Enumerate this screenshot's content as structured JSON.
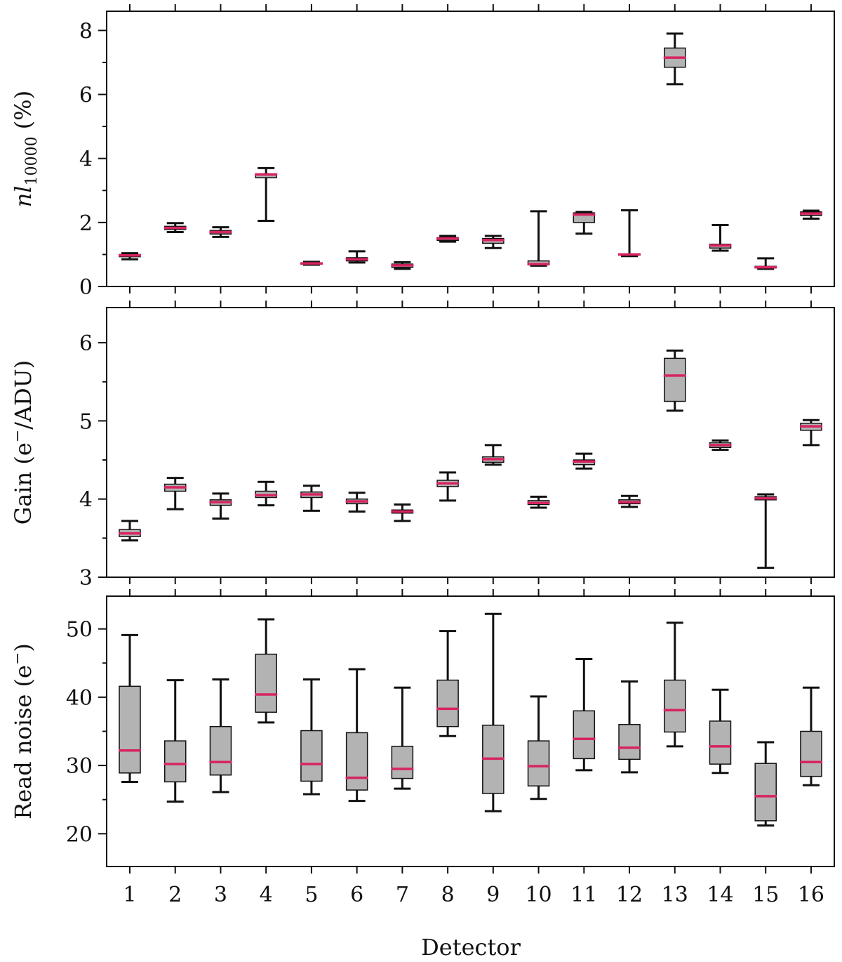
{
  "figure": {
    "xlabel": "Detector",
    "categories": [
      "1",
      "2",
      "3",
      "4",
      "5",
      "6",
      "7",
      "8",
      "9",
      "10",
      "11",
      "12",
      "13",
      "14",
      "15",
      "16"
    ]
  },
  "colors": {
    "box_fill": "#b3b3b3",
    "median": "#d6245f",
    "line": "#111111"
  },
  "chart_data": [
    {
      "type": "box",
      "ylabel": {
        "main": "nl",
        "sub": "10000",
        "suffix": " (%)"
      },
      "ylim": [
        0,
        8.6
      ],
      "yticks": [
        0,
        2,
        4,
        6,
        8
      ],
      "yminor": [
        1,
        3,
        5,
        7
      ],
      "boxes": [
        {
          "label": "1",
          "whislo": 0.85,
          "q1": 0.93,
          "med": 0.97,
          "q3": 1.0,
          "whishi": 1.04
        },
        {
          "label": "2",
          "whislo": 1.7,
          "q1": 1.78,
          "med": 1.83,
          "q3": 1.88,
          "whishi": 1.98
        },
        {
          "label": "3",
          "whislo": 1.55,
          "q1": 1.64,
          "med": 1.7,
          "q3": 1.75,
          "whishi": 1.85
        },
        {
          "label": "4",
          "whislo": 2.05,
          "q1": 3.4,
          "med": 3.5,
          "q3": 3.52,
          "whishi": 3.7
        },
        {
          "label": "5",
          "whislo": 0.68,
          "q1": 0.7,
          "med": 0.72,
          "q3": 0.74,
          "whishi": 0.77
        },
        {
          "label": "6",
          "whislo": 0.75,
          "q1": 0.8,
          "med": 0.85,
          "q3": 0.9,
          "whishi": 1.1
        },
        {
          "label": "7",
          "whislo": 0.55,
          "q1": 0.6,
          "med": 0.66,
          "q3": 0.7,
          "whishi": 0.76
        },
        {
          "label": "8",
          "whislo": 1.4,
          "q1": 1.44,
          "med": 1.5,
          "q3": 1.53,
          "whishi": 1.58
        },
        {
          "label": "9",
          "whislo": 1.2,
          "q1": 1.35,
          "med": 1.45,
          "q3": 1.5,
          "whishi": 1.58
        },
        {
          "label": "10",
          "whislo": 0.65,
          "q1": 0.68,
          "med": 0.7,
          "q3": 0.8,
          "whishi": 2.35
        },
        {
          "label": "11",
          "whislo": 1.65,
          "q1": 2.0,
          "med": 2.25,
          "q3": 2.3,
          "whishi": 2.33
        },
        {
          "label": "12",
          "whislo": 0.95,
          "q1": 0.98,
          "med": 1.0,
          "q3": 1.02,
          "whishi": 2.38
        },
        {
          "label": "13",
          "whislo": 6.32,
          "q1": 6.85,
          "med": 7.15,
          "q3": 7.45,
          "whishi": 7.9
        },
        {
          "label": "14",
          "whislo": 1.12,
          "q1": 1.2,
          "med": 1.28,
          "q3": 1.32,
          "whishi": 1.92
        },
        {
          "label": "15",
          "whislo": 0.55,
          "q1": 0.58,
          "med": 0.6,
          "q3": 0.63,
          "whishi": 0.88
        },
        {
          "label": "16",
          "whislo": 2.12,
          "q1": 2.22,
          "med": 2.28,
          "q3": 2.33,
          "whishi": 2.37
        }
      ]
    },
    {
      "type": "box",
      "ylabel": {
        "main": "Gain (e",
        "sup": "−",
        "suffix": "/ADU)"
      },
      "ylim": [
        3.0,
        6.45
      ],
      "yticks": [
        3,
        4,
        5,
        6
      ],
      "yminor": [
        3.5,
        4.5,
        5.5
      ],
      "boxes": [
        {
          "label": "1",
          "whislo": 3.47,
          "q1": 3.52,
          "med": 3.56,
          "q3": 3.61,
          "whishi": 3.72
        },
        {
          "label": "2",
          "whislo": 3.87,
          "q1": 4.1,
          "med": 4.15,
          "q3": 4.19,
          "whishi": 4.27
        },
        {
          "label": "3",
          "whislo": 3.75,
          "q1": 3.92,
          "med": 3.96,
          "q3": 3.99,
          "whishi": 4.07
        },
        {
          "label": "4",
          "whislo": 3.92,
          "q1": 4.02,
          "med": 4.05,
          "q3": 4.1,
          "whishi": 4.22
        },
        {
          "label": "5",
          "whislo": 3.85,
          "q1": 4.02,
          "med": 4.06,
          "q3": 4.09,
          "whishi": 4.17
        },
        {
          "label": "6",
          "whislo": 3.84,
          "q1": 3.94,
          "med": 3.97,
          "q3": 4.0,
          "whishi": 4.08
        },
        {
          "label": "7",
          "whislo": 3.72,
          "q1": 3.82,
          "med": 3.84,
          "q3": 3.86,
          "whishi": 3.93
        },
        {
          "label": "8",
          "whislo": 3.98,
          "q1": 4.16,
          "med": 4.2,
          "q3": 4.24,
          "whishi": 4.34
        },
        {
          "label": "9",
          "whislo": 4.44,
          "q1": 4.47,
          "med": 4.51,
          "q3": 4.54,
          "whishi": 4.69
        },
        {
          "label": "10",
          "whislo": 3.89,
          "q1": 3.93,
          "med": 3.95,
          "q3": 3.98,
          "whishi": 4.03
        },
        {
          "label": "11",
          "whislo": 4.39,
          "q1": 4.44,
          "med": 4.48,
          "q3": 4.5,
          "whishi": 4.58
        },
        {
          "label": "12",
          "whislo": 3.9,
          "q1": 3.94,
          "med": 3.96,
          "q3": 3.99,
          "whishi": 4.04
        },
        {
          "label": "13",
          "whislo": 5.13,
          "q1": 5.25,
          "med": 5.58,
          "q3": 5.8,
          "whishi": 5.9
        },
        {
          "label": "14",
          "whislo": 4.63,
          "q1": 4.66,
          "med": 4.69,
          "q3": 4.72,
          "whishi": 4.75
        },
        {
          "label": "15",
          "whislo": 3.12,
          "q1": 3.99,
          "med": 4.01,
          "q3": 4.03,
          "whishi": 4.06
        },
        {
          "label": "16",
          "whislo": 4.69,
          "q1": 4.88,
          "med": 4.93,
          "q3": 4.97,
          "whishi": 5.01
        }
      ]
    },
    {
      "type": "box",
      "ylabel": {
        "main": "Read noise (e",
        "sup": "−",
        "suffix": ")"
      },
      "ylim": [
        15.2,
        54.8
      ],
      "yticks": [
        20,
        30,
        40,
        50
      ],
      "yminor": [
        25,
        35,
        45
      ],
      "boxes": [
        {
          "label": "1",
          "whislo": 27.6,
          "q1": 28.9,
          "med": 32.2,
          "q3": 41.6,
          "whishi": 49.1
        },
        {
          "label": "2",
          "whislo": 24.7,
          "q1": 27.6,
          "med": 30.2,
          "q3": 33.6,
          "whishi": 42.5
        },
        {
          "label": "3",
          "whislo": 26.1,
          "q1": 28.6,
          "med": 30.5,
          "q3": 35.7,
          "whishi": 42.6
        },
        {
          "label": "4",
          "whislo": 36.3,
          "q1": 37.8,
          "med": 40.4,
          "q3": 46.3,
          "whishi": 51.4
        },
        {
          "label": "5",
          "whislo": 25.8,
          "q1": 27.7,
          "med": 30.2,
          "q3": 35.1,
          "whishi": 42.6
        },
        {
          "label": "6",
          "whislo": 24.8,
          "q1": 26.4,
          "med": 28.2,
          "q3": 34.8,
          "whishi": 44.1
        },
        {
          "label": "7",
          "whislo": 26.6,
          "q1": 28.1,
          "med": 29.5,
          "q3": 32.8,
          "whishi": 41.4
        },
        {
          "label": "8",
          "whislo": 34.3,
          "q1": 35.7,
          "med": 38.3,
          "q3": 42.5,
          "whishi": 49.7
        },
        {
          "label": "9",
          "whislo": 23.3,
          "q1": 25.9,
          "med": 31.0,
          "q3": 35.9,
          "whishi": 52.2
        },
        {
          "label": "10",
          "whislo": 25.1,
          "q1": 27.0,
          "med": 29.9,
          "q3": 33.6,
          "whishi": 40.1
        },
        {
          "label": "11",
          "whislo": 29.3,
          "q1": 31.0,
          "med": 33.9,
          "q3": 38.0,
          "whishi": 45.6
        },
        {
          "label": "12",
          "whislo": 29.0,
          "q1": 30.9,
          "med": 32.6,
          "q3": 36.0,
          "whishi": 42.3
        },
        {
          "label": "13",
          "whislo": 32.8,
          "q1": 34.9,
          "med": 38.1,
          "q3": 42.5,
          "whishi": 50.9
        },
        {
          "label": "14",
          "whislo": 28.9,
          "q1": 30.2,
          "med": 32.8,
          "q3": 36.5,
          "whishi": 41.1
        },
        {
          "label": "15",
          "whislo": 21.2,
          "q1": 21.9,
          "med": 25.5,
          "q3": 30.3,
          "whishi": 33.4
        },
        {
          "label": "16",
          "whislo": 27.1,
          "q1": 28.4,
          "med": 30.5,
          "q3": 35.0,
          "whishi": 41.4
        }
      ]
    }
  ]
}
